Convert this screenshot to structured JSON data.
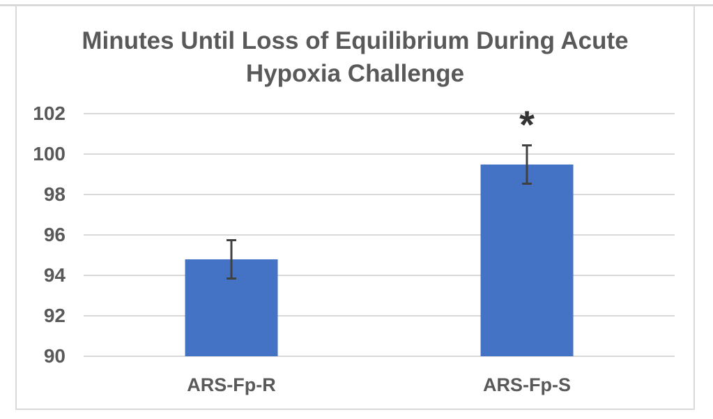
{
  "chart_data": {
    "type": "bar",
    "title": "Minutes Until Loss of Equilibrium During Acute Hypoxia Challenge",
    "title_lines": [
      "Minutes Until Loss of Equilibrium During Acute",
      "Hypoxia Challenge"
    ],
    "categories": [
      "ARS-Fp-R",
      "ARS-Fp-S"
    ],
    "values": [
      94.8,
      99.5
    ],
    "error_bars": [
      1.0,
      1.0
    ],
    "annotations": [
      "",
      "*"
    ],
    "xlabel": "",
    "ylabel": "",
    "ylim": [
      90,
      102
    ],
    "yticks": [
      90,
      92,
      94,
      96,
      98,
      100,
      102
    ],
    "legend_position": "none",
    "grid": "horizontal",
    "bar_width_fraction": 0.1568,
    "colors": {
      "bar_fill": "#4472C4",
      "gridline": "#D9D9D9",
      "frame_border": "#D9D9D9",
      "text": "#595959",
      "error_bar": "#404040",
      "annotation": "#333333"
    }
  }
}
